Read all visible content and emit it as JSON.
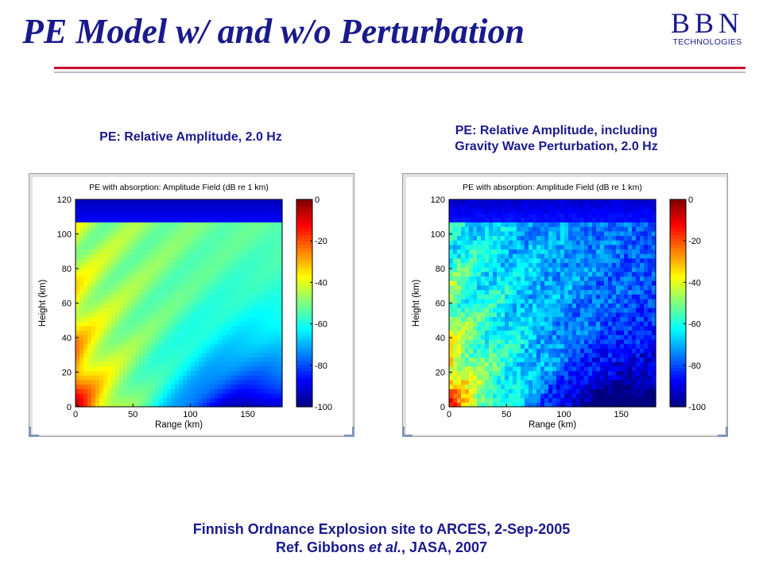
{
  "slide": {
    "title": "PE Model w/ and w/o Perturbation",
    "logo": {
      "main": "BBN",
      "sub": "TECHNOLOGIES"
    },
    "footer": {
      "line1": "Finnish Ordnance Explosion site to ARCES, 2-Sep-2005",
      "line2_prefix": "Ref. Gibbons ",
      "line2_italic": "et al.",
      "line2_suffix": ", JASA, 2007"
    },
    "colors": {
      "title": "#1a1a8c",
      "rule_red": "#c8102e",
      "rule_gray": "#b9b9c9"
    }
  },
  "captions": {
    "left": "PE: Relative Amplitude, 2.0 Hz",
    "right_line1": "PE: Relative Amplitude, including",
    "right_line2": "Gravity Wave Perturbation, 2.0 Hz"
  },
  "chart_data": [
    {
      "type": "heatmap",
      "title": "PE with absorption: Amplitude Field (dB re 1 km)",
      "xlabel": "Range (km)",
      "ylabel": "Height (km)",
      "xlim": [
        0,
        180
      ],
      "ylim": [
        0,
        120
      ],
      "xticks": [
        0,
        50,
        100,
        150
      ],
      "yticks": [
        0,
        20,
        40,
        60,
        80,
        100,
        120
      ],
      "colorbar": {
        "range": [
          -100,
          0
        ],
        "ticks": [
          0,
          -20,
          -40,
          -60,
          -80,
          -100
        ],
        "colormap": "jet"
      },
      "perturbation": false
    },
    {
      "type": "heatmap",
      "title": "PE with absorption: Amplitude Field (dB re 1 km)",
      "xlabel": "Range (km)",
      "ylabel": "Height (km)",
      "xlim": [
        0,
        180
      ],
      "ylim": [
        0,
        120
      ],
      "xticks": [
        0,
        50,
        100,
        150
      ],
      "yticks": [
        0,
        20,
        40,
        60,
        80,
        100,
        120
      ],
      "colorbar": {
        "range": [
          -100,
          0
        ],
        "ticks": [
          0,
          -20,
          -40,
          -60,
          -80,
          -100
        ],
        "colormap": "jet"
      },
      "perturbation": true
    }
  ]
}
